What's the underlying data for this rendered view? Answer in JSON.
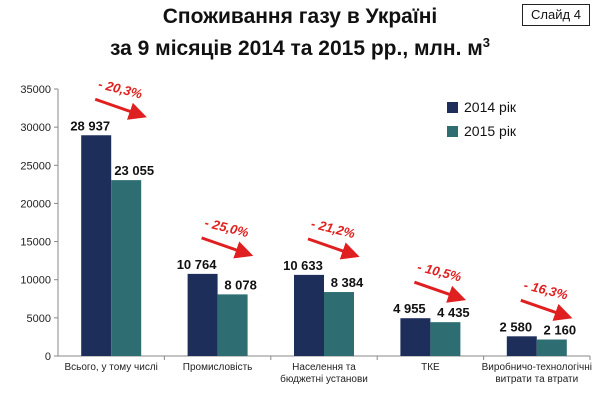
{
  "slide": {
    "label": "Слайд 4"
  },
  "chart_data": {
    "type": "bar",
    "title_line1": "Споживання газу в Україні",
    "title_line2": "за 9 місяців 2014 та 2015 рр., млн. м",
    "title_superscript": "3",
    "categories": [
      [
        "Всього, у тому числі"
      ],
      [
        "Промисловість"
      ],
      [
        "Населення та",
        "бюджетні установи"
      ],
      [
        "ТКЕ"
      ],
      [
        "Виробничо-технологічні",
        "витрати та втрати"
      ]
    ],
    "series": [
      {
        "name": "2014 рік",
        "color": "#1e2e5a",
        "values": [
          28937,
          10764,
          10633,
          4955,
          2580
        ],
        "labels": [
          "28 937",
          "10 764",
          "10 633",
          "4 955",
          "2 580"
        ]
      },
      {
        "name": "2015 рік",
        "color": "#2e6e73",
        "values": [
          23055,
          8078,
          8384,
          4435,
          2160
        ],
        "labels": [
          "23 055",
          "8 078",
          "8 384",
          "4 435",
          "2 160"
        ]
      }
    ],
    "changes": [
      "- 20,3%",
      "- 25,0%",
      "- 21,2%",
      "- 10,5%",
      "- 16,3%"
    ],
    "ylim": [
      0,
      35000
    ],
    "yticks": [
      0,
      5000,
      10000,
      15000,
      20000,
      25000,
      30000,
      35000
    ],
    "grid": false,
    "legend_position": "right"
  }
}
